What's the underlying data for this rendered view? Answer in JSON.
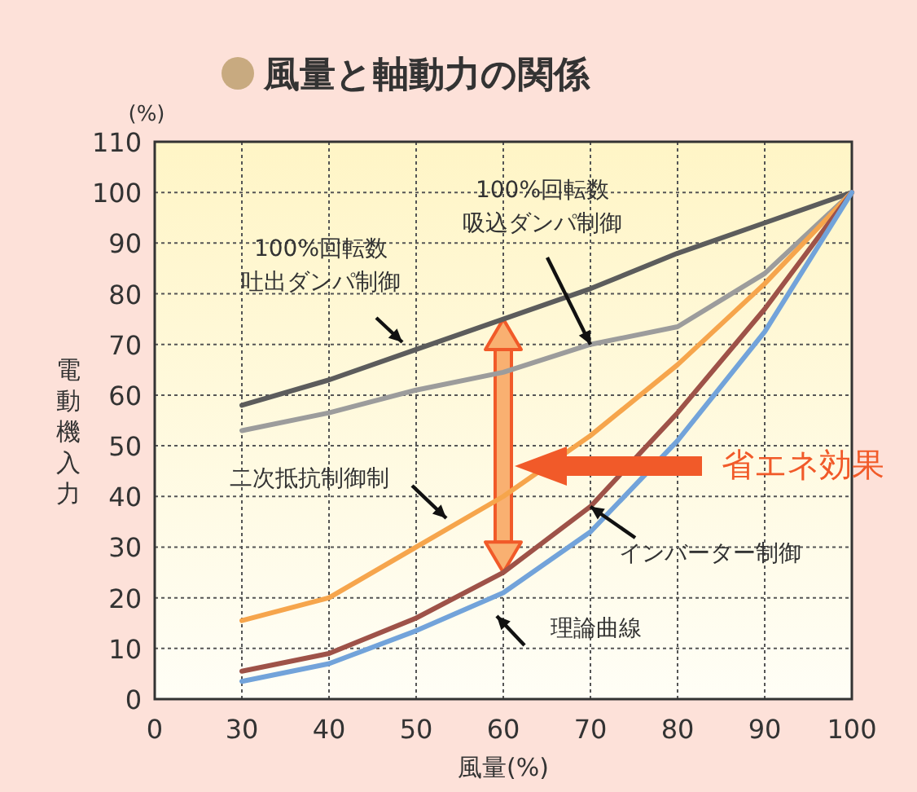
{
  "chart_data": {
    "type": "line",
    "title": "風量と軸動力の関係",
    "xlabel": "風量(%)",
    "ylabel": "電動機入力",
    "categories": [
      "0",
      "30",
      "40",
      "50",
      "60",
      "70",
      "80",
      "90",
      "100"
    ],
    "series": [
      {
        "color": "#5c5c5c",
        "values": [
          null,
          58,
          63,
          69,
          75,
          81,
          88,
          94,
          100
        ]
      },
      {
        "color": "#9c9c9c",
        "values": [
          null,
          53,
          56.5,
          61,
          64.5,
          70,
          73.5,
          84,
          100
        ]
      },
      {
        "color": "#f6a54c",
        "values": [
          null,
          15.5,
          20,
          30,
          40,
          52,
          66,
          82,
          100
        ]
      },
      {
        "color": "#9e5248",
        "values": [
          null,
          5.5,
          9,
          16,
          25,
          38,
          56.5,
          77,
          100
        ]
      },
      {
        "color": "#72a3da",
        "values": [
          null,
          3.5,
          7,
          13.5,
          21,
          33,
          51,
          72.5,
          100
        ]
      }
    ],
    "ylim": [
      0,
      110
    ],
    "yticks": [
      0,
      10,
      20,
      30,
      40,
      50,
      60,
      70,
      80,
      90,
      100,
      110
    ],
    "grid": true,
    "line_style": "solid",
    "marker": "none",
    "annotations": [
      "(%)",
      "100%回転数吐出ダンパ制御",
      {
        "text": "100%回転数吸込ダンパ制御",
        "x": "70",
        "y": 70
      },
      "二次抵抗制御制",
      {
        "text": "インバーター制御",
        "x": "70",
        "y": 38
      },
      "理論曲線",
      "省エネ効果"
    ]
  }
}
